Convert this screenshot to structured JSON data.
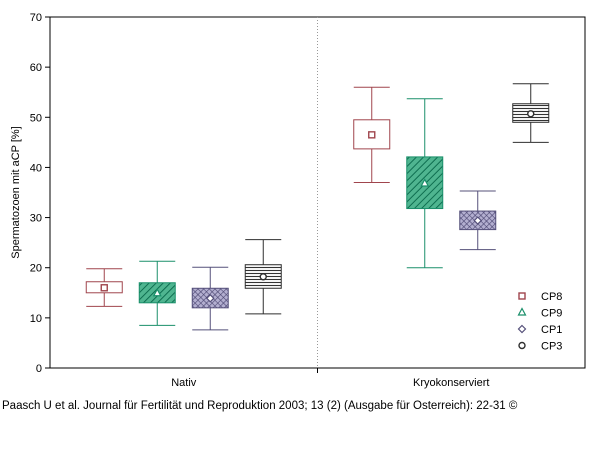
{
  "chart_data": {
    "type": "boxplot",
    "ylabel": "Spermatozoen mit aCP [%]",
    "xlabel": "",
    "ylim": [
      0,
      70
    ],
    "yticks": [
      "0",
      "10",
      "20",
      "30",
      "40",
      "50",
      "60",
      "70"
    ],
    "categories": [
      "Nativ",
      "Kryokonserviert"
    ],
    "legend_position": "bottom-right",
    "series": [
      {
        "name": "CP8",
        "color": "#a0454d",
        "marker": "square",
        "fill": "none",
        "boxes": [
          {
            "category": "Nativ",
            "whisker_low": 12.3,
            "q1": 15.0,
            "median": 16.0,
            "q3": 17.2,
            "whisker_high": 19.8
          },
          {
            "category": "Kryokonserviert",
            "whisker_low": 37.0,
            "q1": 43.7,
            "median": 46.5,
            "q3": 49.5,
            "whisker_high": 56.0
          }
        ]
      },
      {
        "name": "CP9",
        "color": "#1a8f6a",
        "marker": "triangle",
        "fill": "diagonal",
        "boxes": [
          {
            "category": "Nativ",
            "whisker_low": 8.5,
            "q1": 13.0,
            "median": 14.9,
            "q3": 17.0,
            "whisker_high": 21.3
          },
          {
            "category": "Kryokonserviert",
            "whisker_low": 20.0,
            "q1": 31.8,
            "median": 36.8,
            "q3": 42.1,
            "whisker_high": 53.7
          }
        ]
      },
      {
        "name": "CP1",
        "color": "#55507a",
        "marker": "diamond",
        "fill": "crosshatch",
        "boxes": [
          {
            "category": "Nativ",
            "whisker_low": 7.6,
            "q1": 12.0,
            "median": 13.9,
            "q3": 15.9,
            "whisker_high": 20.1
          },
          {
            "category": "Kryokonserviert",
            "whisker_low": 23.6,
            "q1": 27.6,
            "median": 29.4,
            "q3": 31.3,
            "whisker_high": 35.3
          }
        ]
      },
      {
        "name": "CP3",
        "color": "#2f2f2f",
        "marker": "circle",
        "fill": "horizontal",
        "boxes": [
          {
            "category": "Nativ",
            "whisker_low": 10.8,
            "q1": 15.9,
            "median": 18.2,
            "q3": 20.6,
            "whisker_high": 25.6
          },
          {
            "category": "Kryokonserviert",
            "whisker_low": 45.0,
            "q1": 49.0,
            "median": 50.7,
            "q3": 52.7,
            "whisker_high": 56.7
          }
        ]
      }
    ]
  },
  "citation": "Paasch U et al. Journal für Fertilität und Reproduktion 2003; 13 (2) (Ausgabe für Österreich): 22-31 ©"
}
